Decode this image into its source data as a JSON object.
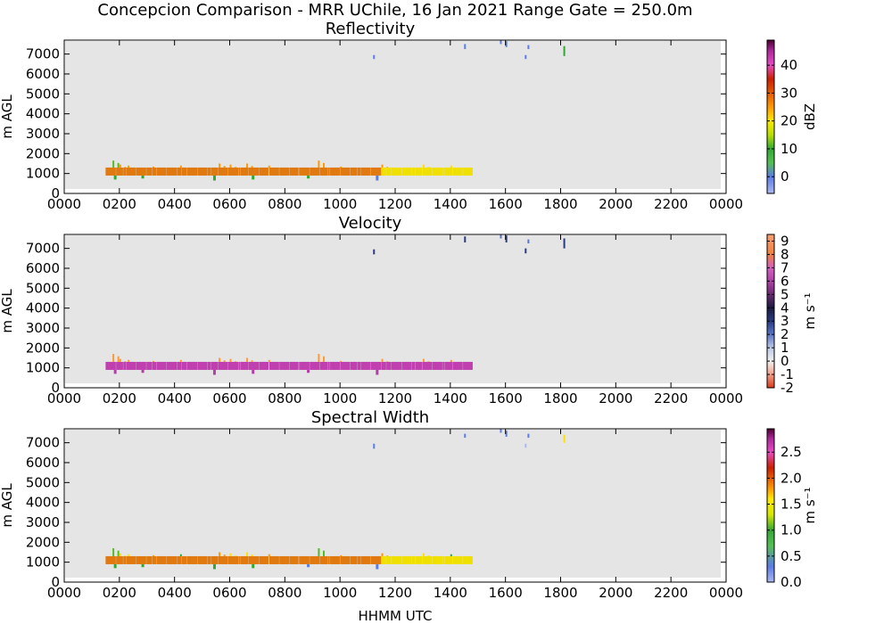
{
  "suptitle": "Concepcion Comparison - MRR UChile, 16 Jan 2021 Range Gate = 250.0m",
  "xlabel": "HHMM UTC",
  "chart_data": [
    {
      "type": "heatmap",
      "title": "Reflectivity",
      "ylabel": "m AGL",
      "xlabel": "",
      "xlim": [
        0,
        2400
      ],
      "ylim": [
        0,
        7700
      ],
      "x_ticks": [
        "0000",
        "0200",
        "0400",
        "0600",
        "0800",
        "1000",
        "1200",
        "1400",
        "1600",
        "1800",
        "2000",
        "2200",
        "0000"
      ],
      "y_ticks": [
        "0",
        "1000",
        "2000",
        "3000",
        "4000",
        "5000",
        "6000",
        "7000"
      ],
      "background": "#e5e5e5",
      "colorbar": {
        "label": "dBZ",
        "range": [
          -6,
          49
        ],
        "ticks": [
          "0",
          "10",
          "20",
          "30",
          "40"
        ],
        "tick_values": [
          0,
          10,
          20,
          30,
          40
        ],
        "stops": [
          {
            "value": -6,
            "color": "#aab8f2"
          },
          {
            "value": 0,
            "color": "#5c7ce6"
          },
          {
            "value": 5,
            "color": "#55bf55"
          },
          {
            "value": 10,
            "color": "#32a832"
          },
          {
            "value": 15,
            "color": "#b8e000"
          },
          {
            "value": 20,
            "color": "#ffea00"
          },
          {
            "value": 25,
            "color": "#ff9900"
          },
          {
            "value": 30,
            "color": "#e65c00"
          },
          {
            "value": 35,
            "color": "#cc1f00"
          },
          {
            "value": 40,
            "color": "#e84cc4"
          },
          {
            "value": 45,
            "color": "#b02a9e"
          },
          {
            "value": 49,
            "color": "#4d0033"
          }
        ]
      },
      "band": {
        "x_start": 150,
        "x_end": 1480,
        "y_bottom": 900,
        "y_top": 1300,
        "color": "#e07a10",
        "late_color": "#f0e000",
        "late_from": 1150
      },
      "spikes": [
        {
          "x": 175,
          "top": 1650,
          "color": "#55bb22"
        },
        {
          "x": 200,
          "top": 1450,
          "color": "#ff9900"
        },
        {
          "x": 230,
          "top": 1400,
          "color": "#ff9900"
        },
        {
          "x": 320,
          "top": 1350,
          "color": "#ff9900"
        },
        {
          "x": 420,
          "top": 1400,
          "color": "#ff9900"
        },
        {
          "x": 560,
          "top": 1500,
          "color": "#ff9900"
        },
        {
          "x": 600,
          "top": 1450,
          "color": "#ff9900"
        },
        {
          "x": 660,
          "top": 1500,
          "color": "#ff9900"
        },
        {
          "x": 740,
          "top": 1400,
          "color": "#ff9900"
        },
        {
          "x": 920,
          "top": 1650,
          "color": "#ff9900"
        },
        {
          "x": 1000,
          "top": 1350,
          "color": "#ff9900"
        },
        {
          "x": 1150,
          "top": 1450,
          "color": "#ff9900"
        },
        {
          "x": 1300,
          "top": 1450,
          "color": "#ffe000"
        },
        {
          "x": 1400,
          "top": 1400,
          "color": "#ffe000"
        }
      ],
      "drops": [
        {
          "x": 180,
          "bottom": 700,
          "color": "#32a832"
        },
        {
          "x": 280,
          "bottom": 750,
          "color": "#32a832"
        },
        {
          "x": 540,
          "bottom": 650,
          "color": "#32a832"
        },
        {
          "x": 680,
          "bottom": 700,
          "color": "#32a832"
        },
        {
          "x": 880,
          "bottom": 750,
          "color": "#32a832"
        },
        {
          "x": 1130,
          "bottom": 650,
          "color": "#5c7ce6"
        }
      ],
      "streaks": [
        {
          "x": 1120,
          "top": 6950,
          "bottom": 6750,
          "color": "#5c7ce6"
        },
        {
          "x": 1450,
          "top": 7500,
          "bottom": 7250,
          "color": "#5c7ce6"
        },
        {
          "x": 1580,
          "top": 7700,
          "bottom": 7500,
          "color": "#5c7ce6"
        },
        {
          "x": 1600,
          "top": 7650,
          "bottom": 7350,
          "color": "#5c7ce6"
        },
        {
          "x": 1670,
          "top": 6950,
          "bottom": 6750,
          "color": "#5c7ce6"
        },
        {
          "x": 1680,
          "top": 7450,
          "bottom": 7250,
          "color": "#5c7ce6"
        },
        {
          "x": 1810,
          "top": 7400,
          "bottom": 6900,
          "color": "#32a832"
        }
      ]
    },
    {
      "type": "heatmap",
      "title": "Velocity",
      "ylabel": "m AGL",
      "xlabel": "",
      "xlim": [
        0,
        2400
      ],
      "ylim": [
        0,
        7700
      ],
      "x_ticks": [
        "0000",
        "0200",
        "0400",
        "0600",
        "0800",
        "1000",
        "1200",
        "1400",
        "1600",
        "1800",
        "2000",
        "2200",
        "0000"
      ],
      "y_ticks": [
        "0",
        "1000",
        "2000",
        "3000",
        "4000",
        "5000",
        "6000",
        "7000"
      ],
      "background": "#e5e5e5",
      "colorbar": {
        "label": "m s⁻¹",
        "range": [
          -2,
          9.5
        ],
        "ticks": [
          "-2",
          "-1",
          "0",
          "1",
          "2",
          "3",
          "4",
          "5",
          "6",
          "7",
          "8",
          "9"
        ],
        "tick_values": [
          -2,
          -1,
          0,
          1,
          2,
          3,
          4,
          5,
          6,
          7,
          8,
          9
        ],
        "stops": [
          {
            "value": -2,
            "color": "#d93a1a"
          },
          {
            "value": -1,
            "color": "#f2a08a"
          },
          {
            "value": 0,
            "color": "#f2f2f2"
          },
          {
            "value": 1,
            "color": "#bcc8e6"
          },
          {
            "value": 2,
            "color": "#5a76c8"
          },
          {
            "value": 3,
            "color": "#2a3a80"
          },
          {
            "value": 4,
            "color": "#1a1a40"
          },
          {
            "value": 5,
            "color": "#6a2a70"
          },
          {
            "value": 6,
            "color": "#b040a8"
          },
          {
            "value": 7,
            "color": "#d460c0"
          },
          {
            "value": 8,
            "color": "#f08040"
          },
          {
            "value": 9.5,
            "color": "#f8a070"
          }
        ]
      },
      "band": {
        "x_start": 150,
        "x_end": 1480,
        "y_bottom": 900,
        "y_top": 1300,
        "color": "#c040b0",
        "late_color": "#c040b0",
        "late_from": 1150
      },
      "spikes": [
        {
          "x": 175,
          "top": 1700,
          "color": "#ff9933"
        },
        {
          "x": 200,
          "top": 1450,
          "color": "#ff9933"
        },
        {
          "x": 230,
          "top": 1400,
          "color": "#ff9933"
        },
        {
          "x": 320,
          "top": 1350,
          "color": "#ff9933"
        },
        {
          "x": 420,
          "top": 1400,
          "color": "#ff9933"
        },
        {
          "x": 560,
          "top": 1500,
          "color": "#ff9933"
        },
        {
          "x": 600,
          "top": 1450,
          "color": "#ff9933"
        },
        {
          "x": 660,
          "top": 1500,
          "color": "#ff9933"
        },
        {
          "x": 740,
          "top": 1400,
          "color": "#ff9933"
        },
        {
          "x": 920,
          "top": 1700,
          "color": "#ff9933"
        },
        {
          "x": 1000,
          "top": 1350,
          "color": "#ff9933"
        },
        {
          "x": 1150,
          "top": 1450,
          "color": "#ff9933"
        },
        {
          "x": 1300,
          "top": 1450,
          "color": "#ff9933"
        },
        {
          "x": 1400,
          "top": 1400,
          "color": "#ff9933"
        }
      ],
      "drops": [
        {
          "x": 180,
          "bottom": 700,
          "color": "#b040a8"
        },
        {
          "x": 280,
          "bottom": 750,
          "color": "#b040a8"
        },
        {
          "x": 540,
          "bottom": 650,
          "color": "#b040a8"
        },
        {
          "x": 680,
          "bottom": 700,
          "color": "#b040a8"
        },
        {
          "x": 880,
          "bottom": 750,
          "color": "#b040a8"
        },
        {
          "x": 1130,
          "bottom": 650,
          "color": "#b040a8"
        }
      ],
      "streaks": [
        {
          "x": 1120,
          "top": 6950,
          "bottom": 6700,
          "color": "#2a3a80"
        },
        {
          "x": 1450,
          "top": 7600,
          "bottom": 7300,
          "color": "#2a3a80"
        },
        {
          "x": 1580,
          "top": 7700,
          "bottom": 7500,
          "color": "#5a76c8"
        },
        {
          "x": 1600,
          "top": 7650,
          "bottom": 7300,
          "color": "#2a3a80"
        },
        {
          "x": 1670,
          "top": 7000,
          "bottom": 6750,
          "color": "#2a3a80"
        },
        {
          "x": 1680,
          "top": 7450,
          "bottom": 7250,
          "color": "#5a76c8"
        },
        {
          "x": 1810,
          "top": 7500,
          "bottom": 7000,
          "color": "#2a3a80"
        }
      ]
    },
    {
      "type": "heatmap",
      "title": "Spectral Width",
      "ylabel": "m AGL",
      "xlabel": "HHMM UTC",
      "xlim": [
        0,
        2400
      ],
      "ylim": [
        0,
        7700
      ],
      "x_ticks": [
        "0000",
        "0200",
        "0400",
        "0600",
        "0800",
        "1000",
        "1200",
        "1400",
        "1600",
        "1800",
        "2000",
        "2200",
        "0000"
      ],
      "y_ticks": [
        "0",
        "1000",
        "2000",
        "3000",
        "4000",
        "5000",
        "6000",
        "7000"
      ],
      "background": "#e5e5e5",
      "colorbar": {
        "label": "m s⁻¹",
        "range": [
          0,
          2.95
        ],
        "ticks": [
          "0.0",
          "0.5",
          "1.0",
          "1.5",
          "2.0",
          "2.5"
        ],
        "tick_values": [
          0,
          0.5,
          1,
          1.5,
          2,
          2.5
        ],
        "stops": [
          {
            "value": 0,
            "color": "#aab8f2"
          },
          {
            "value": 0.3,
            "color": "#5c7ce6"
          },
          {
            "value": 0.7,
            "color": "#55bf55"
          },
          {
            "value": 1.0,
            "color": "#32a832"
          },
          {
            "value": 1.3,
            "color": "#d8e800"
          },
          {
            "value": 1.6,
            "color": "#ffea00"
          },
          {
            "value": 1.8,
            "color": "#ff9900"
          },
          {
            "value": 2.0,
            "color": "#e65c00"
          },
          {
            "value": 2.2,
            "color": "#cc1f00"
          },
          {
            "value": 2.5,
            "color": "#e84cc4"
          },
          {
            "value": 2.75,
            "color": "#b02a9e"
          },
          {
            "value": 2.95,
            "color": "#4d0033"
          }
        ]
      },
      "band": {
        "x_start": 150,
        "x_end": 1480,
        "y_bottom": 900,
        "y_top": 1300,
        "color": "#e07a10",
        "late_color": "#f0e000",
        "late_from": 1150
      },
      "spikes": [
        {
          "x": 175,
          "top": 1700,
          "color": "#55bb22"
        },
        {
          "x": 200,
          "top": 1450,
          "color": "#ffe000"
        },
        {
          "x": 230,
          "top": 1400,
          "color": "#ffe000"
        },
        {
          "x": 320,
          "top": 1350,
          "color": "#ff9900"
        },
        {
          "x": 420,
          "top": 1400,
          "color": "#32a832"
        },
        {
          "x": 560,
          "top": 1500,
          "color": "#ff9900"
        },
        {
          "x": 600,
          "top": 1450,
          "color": "#ffe000"
        },
        {
          "x": 660,
          "top": 1500,
          "color": "#ffe000"
        },
        {
          "x": 740,
          "top": 1400,
          "color": "#ff9900"
        },
        {
          "x": 920,
          "top": 1700,
          "color": "#55bb22"
        },
        {
          "x": 1000,
          "top": 1350,
          "color": "#ff9900"
        },
        {
          "x": 1150,
          "top": 1450,
          "color": "#ff9900"
        },
        {
          "x": 1300,
          "top": 1450,
          "color": "#ffe000"
        },
        {
          "x": 1400,
          "top": 1400,
          "color": "#32a832"
        }
      ],
      "drops": [
        {
          "x": 180,
          "bottom": 700,
          "color": "#32a832"
        },
        {
          "x": 280,
          "bottom": 750,
          "color": "#32a832"
        },
        {
          "x": 540,
          "bottom": 650,
          "color": "#32a832"
        },
        {
          "x": 680,
          "bottom": 700,
          "color": "#32a832"
        },
        {
          "x": 880,
          "bottom": 750,
          "color": "#5c7ce6"
        },
        {
          "x": 1130,
          "bottom": 650,
          "color": "#5c7ce6"
        }
      ],
      "streaks": [
        {
          "x": 1120,
          "top": 6950,
          "bottom": 6700,
          "color": "#5c7ce6"
        },
        {
          "x": 1450,
          "top": 7450,
          "bottom": 7250,
          "color": "#5c7ce6"
        },
        {
          "x": 1580,
          "top": 7700,
          "bottom": 7500,
          "color": "#5c7ce6"
        },
        {
          "x": 1600,
          "top": 7600,
          "bottom": 7300,
          "color": "#5c7ce6"
        },
        {
          "x": 1670,
          "top": 6950,
          "bottom": 6750,
          "color": "#aab8f2"
        },
        {
          "x": 1680,
          "top": 7450,
          "bottom": 7250,
          "color": "#5c7ce6"
        },
        {
          "x": 1810,
          "top": 7400,
          "bottom": 7000,
          "color": "#ffe000"
        }
      ]
    }
  ]
}
